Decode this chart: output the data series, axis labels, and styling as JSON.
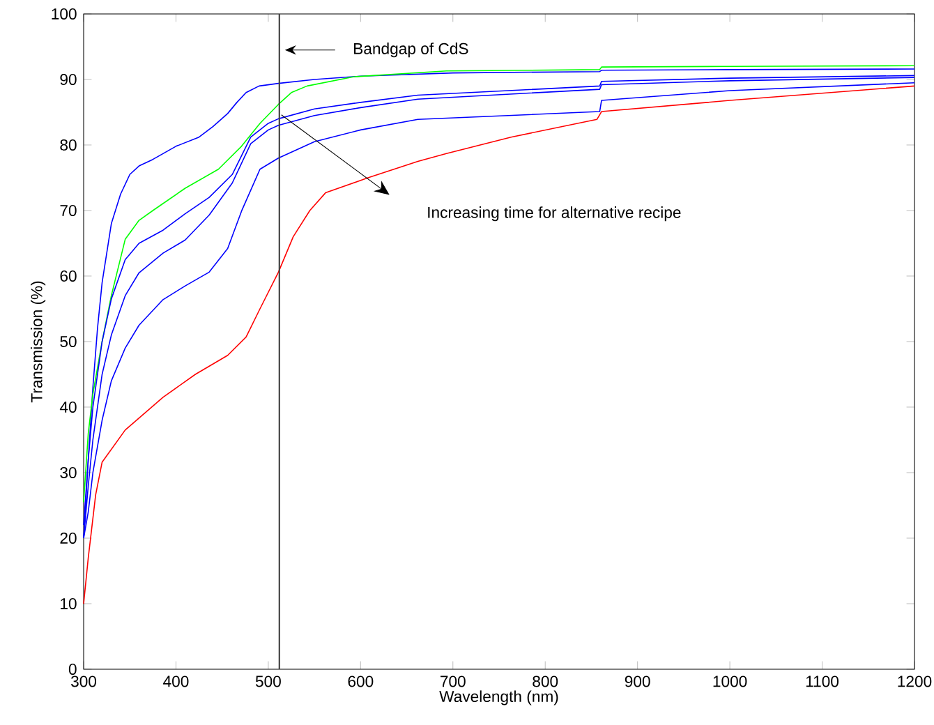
{
  "chart_data": {
    "type": "line",
    "xlabel": "Wavelength (nm)",
    "ylabel": "Transmission (%)",
    "xlim": [
      300,
      1200
    ],
    "xticks": [
      300,
      400,
      500,
      600,
      700,
      800,
      900,
      1000,
      1100,
      1200
    ],
    "ylim": [
      0,
      100
    ],
    "yticks": [
      0,
      10,
      20,
      30,
      40,
      50,
      60,
      70,
      80,
      90,
      100
    ],
    "grid": false,
    "marker": "none",
    "line_style": "solid",
    "series": [
      {
        "color": "#0000ff",
        "x": [
          300,
          305,
          310,
          315,
          320,
          330,
          340,
          350,
          360,
          375,
          400,
          425,
          440,
          456,
          466,
          476,
          490,
          511,
          550,
          600,
          700,
          859,
          861,
          1000,
          1200
        ],
        "values": [
          20,
          32,
          43,
          52,
          59,
          68,
          72.5,
          75.5,
          76.8,
          77.8,
          79.8,
          81.2,
          82.8,
          84.8,
          86.5,
          88,
          89,
          89.4,
          90,
          90.5,
          91,
          91.2,
          91.4,
          91.5,
          91.6
        ]
      },
      {
        "color": "#00ff00",
        "x": [
          300,
          305,
          310,
          320,
          330,
          345,
          360,
          375,
          410,
          446,
          471,
          491,
          511,
          525,
          542,
          592,
          693,
          859,
          861,
          1000,
          1200
        ],
        "values": [
          25.5,
          36,
          42,
          50,
          57,
          65.6,
          68.5,
          70,
          73.4,
          76.3,
          79.8,
          83.3,
          86.2,
          88,
          89,
          90.4,
          91.3,
          91.5,
          91.9,
          92,
          92.1
        ]
      },
      {
        "color": "#0000ff",
        "x": [
          300,
          305,
          310,
          320,
          330,
          345,
          360,
          386,
          410,
          436,
          461,
          481,
          500,
          511,
          550,
          600,
          662,
          859,
          861,
          1000,
          1200
        ],
        "values": [
          22,
          32,
          40,
          50,
          56.5,
          62.5,
          65,
          67,
          69.5,
          72,
          75.5,
          81.2,
          83.3,
          84,
          85.5,
          86.5,
          87.6,
          89,
          89.7,
          90.2,
          90.6
        ]
      },
      {
        "color": "#0000ff",
        "x": [
          300,
          305,
          310,
          320,
          330,
          345,
          360,
          386,
          410,
          436,
          461,
          481,
          500,
          511,
          550,
          600,
          662,
          859,
          861,
          1000,
          1200
        ],
        "values": [
          20,
          28,
          35,
          45,
          51,
          57,
          60.5,
          63.5,
          65.5,
          69.3,
          74.2,
          80.2,
          82.3,
          83,
          84.5,
          85.7,
          87,
          88.5,
          89.2,
          89.8,
          90.3
        ]
      },
      {
        "color": "#0000ff",
        "x": [
          300,
          305,
          310,
          320,
          330,
          345,
          360,
          386,
          410,
          436,
          456,
          471,
          491,
          511,
          550,
          600,
          662,
          859,
          861,
          1000,
          1200
        ],
        "values": [
          20,
          24,
          30,
          38,
          44,
          49,
          52.5,
          56.4,
          58.5,
          60.6,
          64.2,
          69.9,
          76.3,
          78,
          80.5,
          82.3,
          83.9,
          85.1,
          86.8,
          88.3,
          89.5
        ]
      },
      {
        "color": "#ff0000",
        "x": [
          300,
          305,
          313,
          320,
          345,
          386,
          421,
          456,
          476,
          491,
          511,
          527,
          545,
          562,
          608,
          662,
          693,
          763,
          856,
          861,
          1000,
          1200
        ],
        "values": [
          10,
          17,
          26.6,
          31.6,
          36.5,
          41.5,
          45,
          47.9,
          50.7,
          55,
          60.6,
          66,
          70,
          72.7,
          75,
          77.5,
          78.7,
          81.2,
          83.9,
          85.1,
          86.8,
          89
        ]
      }
    ],
    "ref_lines": [
      {
        "axis": "x",
        "value": 512,
        "color": "#404040"
      }
    ],
    "annotations": [
      "Bandgap of CdS",
      "Increasing time for alternative recipe"
    ]
  }
}
